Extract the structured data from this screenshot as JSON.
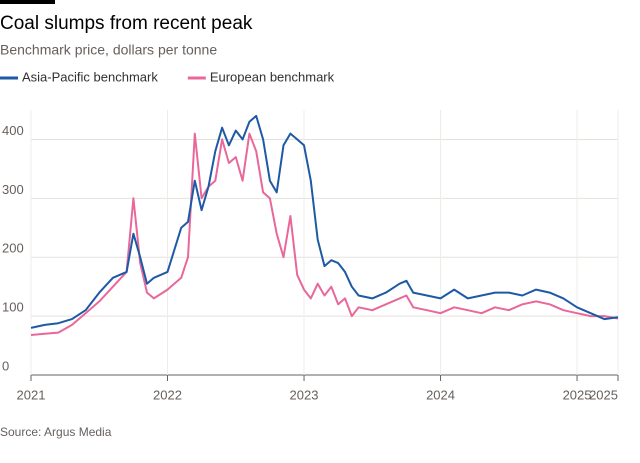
{
  "chart_data": {
    "type": "line",
    "title": "Coal slumps from recent peak",
    "subtitle": "Benchmark price, dollars per tonne",
    "source": "Source: Argus Media",
    "x": [
      2021.0,
      2021.1,
      2021.2,
      2021.3,
      2021.4,
      2021.5,
      2021.6,
      2021.7,
      2021.75,
      2021.8,
      2021.85,
      2021.9,
      2022.0,
      2022.1,
      2022.15,
      2022.2,
      2022.25,
      2022.3,
      2022.35,
      2022.4,
      2022.45,
      2022.5,
      2022.55,
      2022.6,
      2022.65,
      2022.7,
      2022.75,
      2022.8,
      2022.85,
      2022.9,
      2022.95,
      2023.0,
      2023.05,
      2023.1,
      2023.15,
      2023.2,
      2023.25,
      2023.3,
      2023.35,
      2023.4,
      2023.5,
      2023.6,
      2023.7,
      2023.75,
      2023.8,
      2023.9,
      2024.0,
      2024.1,
      2024.2,
      2024.3,
      2024.4,
      2024.5,
      2024.6,
      2024.7,
      2024.8,
      2024.9,
      2025.0,
      2025.1,
      2025.2,
      2025.3
    ],
    "series": [
      {
        "name": "Asia-Pacific benchmark",
        "color": "#1d5aa6",
        "values": [
          80,
          85,
          88,
          95,
          110,
          140,
          165,
          175,
          240,
          200,
          155,
          165,
          175,
          250,
          260,
          330,
          280,
          320,
          380,
          420,
          390,
          415,
          400,
          430,
          440,
          400,
          330,
          310,
          390,
          410,
          400,
          390,
          330,
          230,
          185,
          195,
          190,
          175,
          150,
          135,
          130,
          140,
          155,
          160,
          140,
          135,
          130,
          145,
          130,
          135,
          140,
          140,
          135,
          145,
          140,
          130,
          115,
          105,
          95,
          98
        ]
      },
      {
        "name": "European benchmark",
        "color": "#e8689a",
        "values": [
          68,
          70,
          72,
          85,
          105,
          125,
          150,
          175,
          300,
          190,
          140,
          130,
          145,
          165,
          200,
          410,
          300,
          320,
          330,
          400,
          360,
          370,
          330,
          410,
          380,
          310,
          300,
          240,
          200,
          270,
          170,
          145,
          130,
          155,
          135,
          150,
          120,
          130,
          100,
          115,
          110,
          120,
          130,
          135,
          115,
          110,
          105,
          115,
          110,
          105,
          115,
          110,
          120,
          125,
          120,
          110,
          105,
          100,
          100,
          96
        ]
      }
    ],
    "xlim": [
      2021,
      2025.3
    ],
    "xticks": [
      2021,
      2022,
      2023,
      2024,
      2025,
      {
        "value": 2025.3,
        "label": "2025"
      }
    ],
    "ylim": [
      0,
      450
    ],
    "yticks": [
      0,
      100,
      200,
      300,
      400
    ],
    "grid": true
  }
}
